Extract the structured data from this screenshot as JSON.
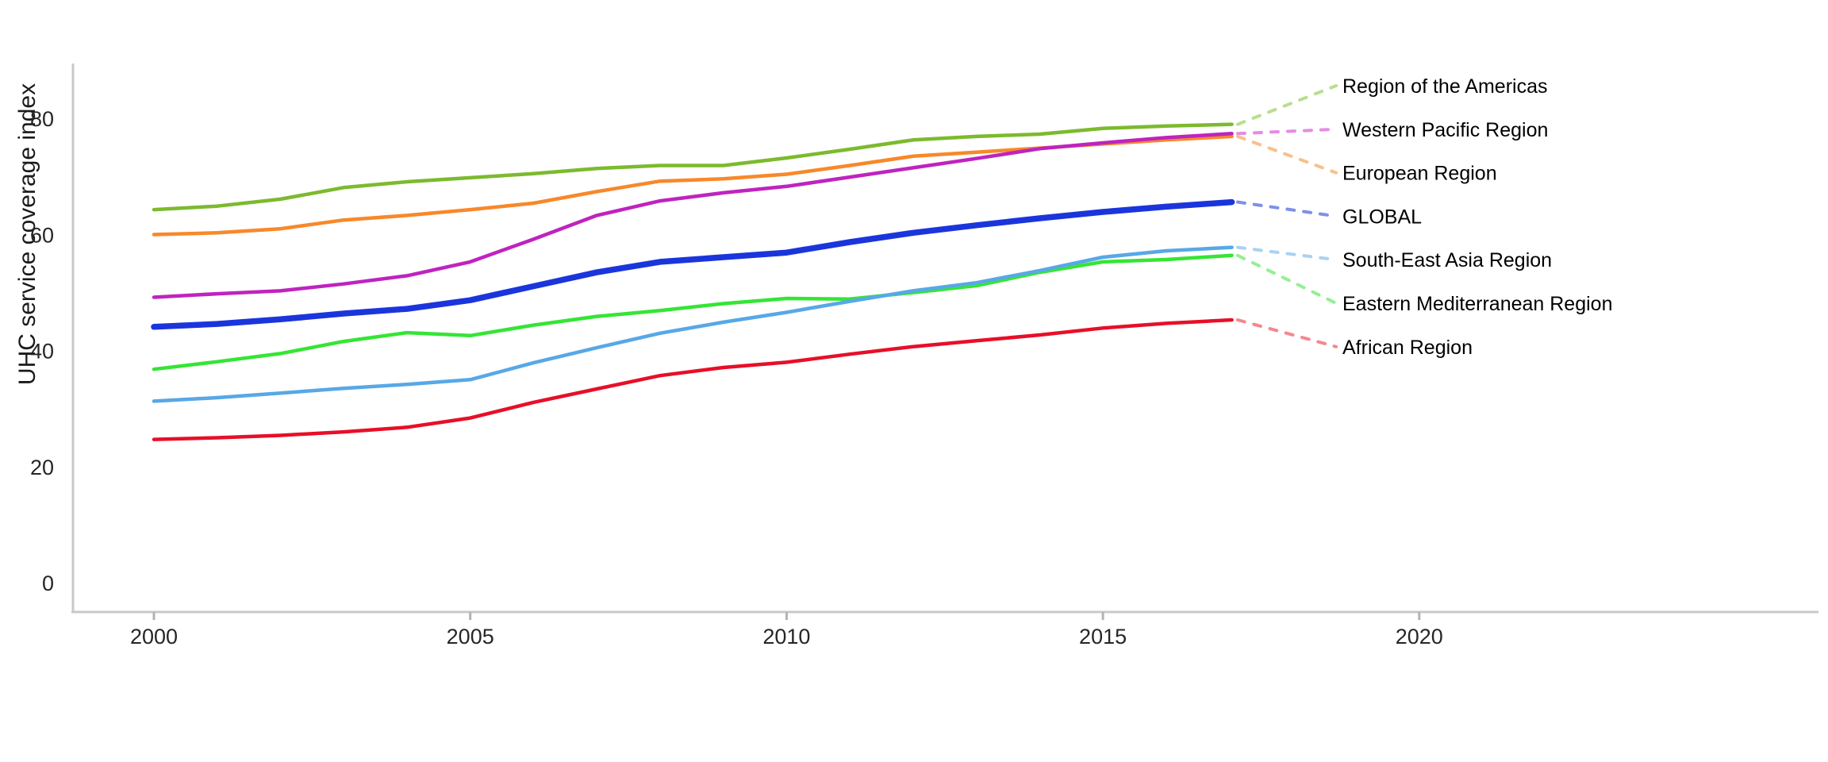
{
  "chart_data": {
    "type": "line",
    "title": "",
    "xlabel": "",
    "ylabel": "UHC service coverage index",
    "x": [
      2000,
      2001,
      2002,
      2003,
      2004,
      2005,
      2006,
      2007,
      2008,
      2009,
      2010,
      2011,
      2012,
      2013,
      2014,
      2015,
      2016,
      2017
    ],
    "x_ticks": [
      2000,
      2005,
      2010,
      2015,
      2020
    ],
    "y_ticks": [
      0,
      20,
      40,
      60,
      80
    ],
    "xlim": [
      2000,
      2026.5
    ],
    "ylim": [
      0,
      90
    ],
    "grid": false,
    "legend_position": "right-edge-labels-with-dashed-leaders",
    "series": [
      {
        "name": "Region of the Americas",
        "color": "#7cba2e",
        "leader_color": "#b9de8e",
        "emphasis": false,
        "values": [
          64.4,
          65.0,
          66.2,
          68.2,
          69.2,
          69.9,
          70.6,
          71.5,
          72.0,
          72.0,
          73.3,
          74.8,
          76.4,
          77.0,
          77.4,
          78.4,
          78.8,
          79.1
        ]
      },
      {
        "name": "Western Pacific Region",
        "color": "#bf23bf",
        "leader_color": "#e48ce4",
        "emphasis": false,
        "values": [
          49.3,
          49.9,
          50.4,
          51.6,
          53.0,
          55.4,
          59.3,
          63.4,
          65.9,
          67.3,
          68.4,
          70.0,
          71.6,
          73.2,
          74.9,
          75.9,
          76.8,
          77.5
        ]
      },
      {
        "name": "European Region",
        "color": "#f8882a",
        "leader_color": "#f9c08b",
        "emphasis": false,
        "values": [
          60.1,
          60.4,
          61.1,
          62.6,
          63.4,
          64.4,
          65.5,
          67.5,
          69.3,
          69.7,
          70.5,
          72.0,
          73.6,
          74.3,
          75.0,
          75.7,
          76.4,
          77.0
        ]
      },
      {
        "name": "GLOBAL",
        "color": "#1b35dc",
        "leader_color": "#7d90e9",
        "emphasis": true,
        "values": [
          44.2,
          44.7,
          45.5,
          46.5,
          47.3,
          48.8,
          51.2,
          53.6,
          55.4,
          56.2,
          57.0,
          58.8,
          60.4,
          61.7,
          62.9,
          64.0,
          64.9,
          65.7
        ]
      },
      {
        "name": "South-East Asia Region",
        "color": "#57a8e7",
        "leader_color": "#a8d3f3",
        "emphasis": false,
        "values": [
          31.4,
          32.0,
          32.8,
          33.6,
          34.3,
          35.1,
          38.0,
          40.6,
          43.1,
          45.0,
          46.7,
          48.6,
          50.4,
          51.8,
          53.9,
          56.2,
          57.3,
          57.9
        ]
      },
      {
        "name": "Eastern Mediterranean Region",
        "color": "#35e535",
        "leader_color": "#93f093",
        "emphasis": false,
        "values": [
          36.9,
          38.2,
          39.6,
          41.7,
          43.2,
          42.7,
          44.5,
          46.0,
          47.0,
          48.2,
          49.1,
          49.0,
          50.1,
          51.3,
          53.6,
          55.4,
          55.8,
          56.5
        ]
      },
      {
        "name": "African Region",
        "color": "#e70f28",
        "leader_color": "#f4878f",
        "emphasis": false,
        "values": [
          24.8,
          25.1,
          25.5,
          26.1,
          26.9,
          28.5,
          31.2,
          33.5,
          35.8,
          37.2,
          38.1,
          39.5,
          40.8,
          41.8,
          42.8,
          44.0,
          44.8,
          45.4
        ]
      }
    ]
  },
  "axis_style": {
    "axis_line_color": "#c9c9c9",
    "tick_mark_color": "#b3b3b3",
    "tick_label_color": "#262626",
    "title_color": "#1a1a1a",
    "label_text_color": "#000000"
  }
}
